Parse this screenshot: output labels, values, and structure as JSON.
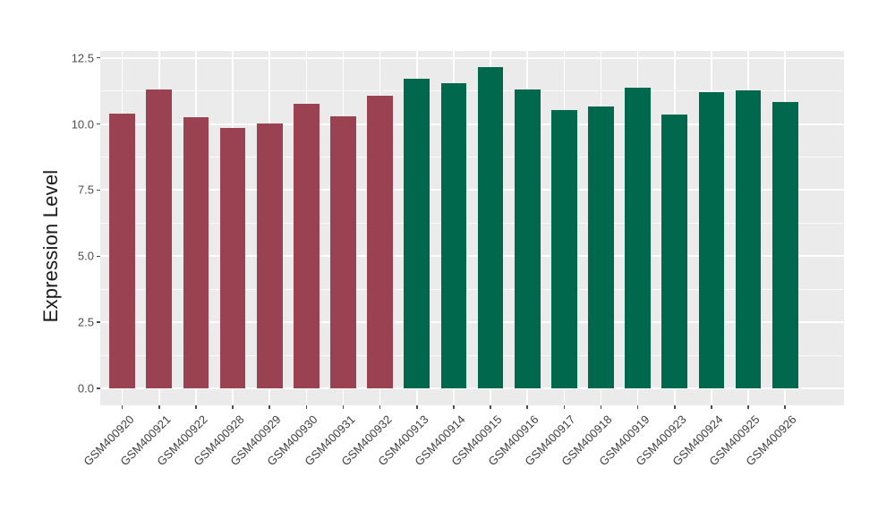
{
  "chart_data": {
    "type": "bar",
    "title": "",
    "xlabel": "",
    "ylabel": "Expression Level",
    "categories": [
      "GSM400920",
      "GSM400921",
      "GSM400922",
      "GSM400928",
      "GSM400929",
      "GSM400930",
      "GSM400931",
      "GSM400932",
      "GSM400913",
      "GSM400914",
      "GSM400915",
      "GSM400916",
      "GSM400917",
      "GSM400918",
      "GSM400919",
      "GSM400923",
      "GSM400924",
      "GSM400925",
      "GSM400926"
    ],
    "values": [
      10.4,
      11.32,
      10.27,
      9.85,
      10.02,
      10.78,
      10.28,
      11.08,
      11.7,
      11.55,
      12.15,
      11.32,
      10.53,
      10.67,
      11.38,
      10.37,
      11.2,
      11.27,
      10.83
    ],
    "groups": [
      "maroon",
      "maroon",
      "maroon",
      "maroon",
      "maroon",
      "maroon",
      "maroon",
      "maroon",
      "green",
      "green",
      "green",
      "green",
      "green",
      "green",
      "green",
      "green",
      "green",
      "green",
      "green"
    ],
    "palette": {
      "maroon": "#9A4152",
      "green": "#00684C"
    },
    "ytick_values": [
      0.0,
      2.5,
      5.0,
      7.5,
      10.0,
      12.5
    ],
    "ytick_labels": [
      "0.0",
      "2.5",
      "5.0",
      "7.5",
      "10.0",
      "12.5"
    ],
    "yminor_values": [
      1.25,
      3.75,
      6.25,
      8.75,
      11.25
    ],
    "ylim": [
      -0.64,
      12.76
    ],
    "bar_width_fraction": 0.7,
    "legend_position": "none",
    "grid": {
      "horizontal_major": true,
      "horizontal_minor": true,
      "vertical_major_at_categories": true
    },
    "panel_bg": "#EBEBEB",
    "grid_color": "#FFFFFF",
    "tick_label_color": "#4D4D4D",
    "axis_title_color": "#1A1A1A"
  }
}
